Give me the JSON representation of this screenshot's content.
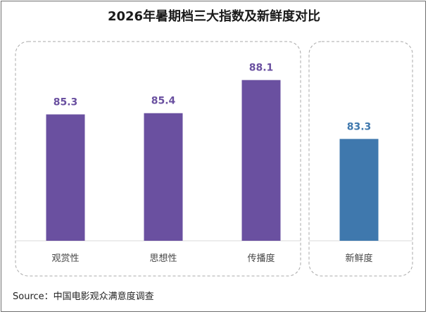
{
  "title": "2026年暑期档三大指数及新鲜度对比",
  "source": "Source：中国电影观众满意度调查",
  "colors": {
    "purple": "#6a50a0",
    "blue": "#3f78ad",
    "purple_label": "#6a50a0",
    "blue_label": "#3f78ad"
  },
  "chart_data": {
    "type": "bar",
    "title": "2026年暑期档三大指数及新鲜度对比",
    "xlabel": "",
    "ylabel": "",
    "categories": [
      "观赏性",
      "思想性",
      "传播度",
      "新鲜度"
    ],
    "values": [
      85.3,
      85.4,
      88.1,
      83.3
    ],
    "value_labels": [
      "85.3",
      "85.4",
      "88.1",
      "83.3"
    ],
    "bar_colors": [
      "#6a50a0",
      "#6a50a0",
      "#6a50a0",
      "#3f78ad"
    ],
    "groups": [
      {
        "categories": [
          "观赏性",
          "思想性",
          "传播度"
        ]
      },
      {
        "categories": [
          "新鲜度"
        ]
      }
    ],
    "grid": false,
    "axis_visible": false,
    "ylim": [
      75,
      89
    ]
  }
}
